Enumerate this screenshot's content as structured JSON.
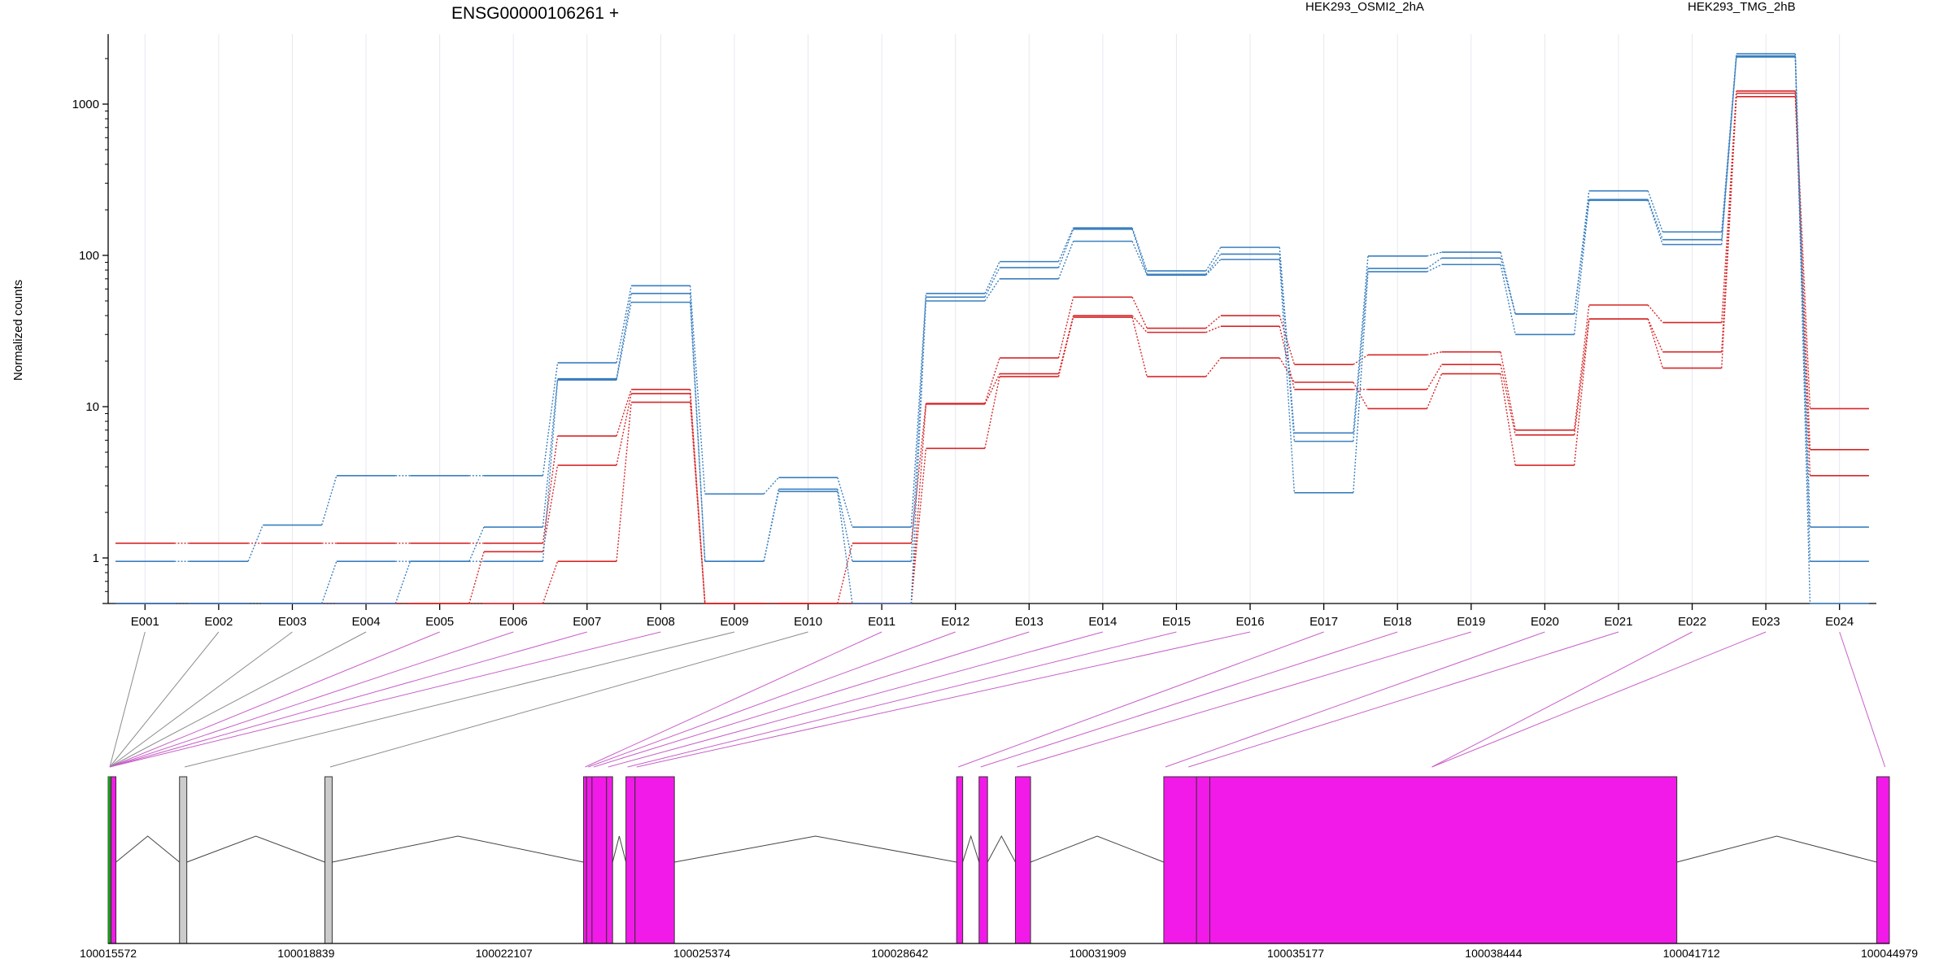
{
  "chart_data": {
    "type": "line",
    "title": "ENSG00000106261 +",
    "ylabel": "Normalized counts",
    "y_scale": "log",
    "ylim": [
      0.5,
      2900
    ],
    "y_ticks": [
      {
        "v": 1,
        "label": "1"
      },
      {
        "v": 10,
        "label": "10"
      },
      {
        "v": 100,
        "label": "100"
      },
      {
        "v": 1000,
        "label": "1000"
      }
    ],
    "grid": "vertical",
    "legend_position": "top",
    "categories": [
      "E001",
      "E002",
      "E003",
      "E004",
      "E005",
      "E006",
      "E007",
      "E008",
      "E009",
      "E010",
      "E011",
      "E012",
      "E013",
      "E014",
      "E015",
      "E016",
      "E017",
      "E018",
      "E019",
      "E020",
      "E021",
      "E022",
      "E023",
      "E024"
    ],
    "legend": [
      {
        "label": "HEK293_OSMI2_2hA",
        "color": "#d62728"
      },
      {
        "label": "HEK293_TMG_2hB",
        "color": "#3a7fbf"
      }
    ],
    "series": [
      {
        "group": 0,
        "color": "#d62728",
        "values": [
          1.25,
          1.25,
          1.25,
          1.25,
          1.25,
          1.25,
          6.4,
          13,
          0.5,
          0.5,
          1.25,
          10.5,
          21,
          53,
          33,
          40,
          19,
          22,
          23,
          7,
          47,
          36,
          1220,
          9.7
        ]
      },
      {
        "group": 0,
        "color": "#d62728",
        "values": [
          0.5,
          0.5,
          0.5,
          0.5,
          0.5,
          1.1,
          4.1,
          12.2,
          0.5,
          0.5,
          0.5,
          10.4,
          16.5,
          40,
          31,
          34,
          13,
          13,
          19,
          6.5,
          38,
          23,
          1180,
          5.2
        ]
      },
      {
        "group": 0,
        "color": "#d62728",
        "values": [
          0.5,
          0.5,
          0.5,
          0.5,
          0.5,
          0.5,
          0.95,
          10.7,
          0.5,
          0.5,
          0.5,
          5.3,
          15.8,
          39,
          15.8,
          21,
          14.5,
          9.7,
          16.5,
          4.1,
          38,
          18,
          1120,
          3.5
        ]
      },
      {
        "group": 1,
        "color": "#3a7fbf",
        "values": [
          0.95,
          0.95,
          1.65,
          3.5,
          3.5,
          3.5,
          19.5,
          63,
          2.65,
          3.4,
          1.6,
          56,
          91,
          152,
          79,
          113,
          6.7,
          99,
          105,
          41,
          267,
          143,
          2150,
          1.6
        ]
      },
      {
        "group": 1,
        "color": "#3a7fbf",
        "values": [
          0.5,
          0.5,
          0.5,
          0.95,
          0.95,
          1.6,
          15.3,
          56,
          0.95,
          2.85,
          0.95,
          53,
          83,
          149,
          75,
          102,
          5.9,
          82,
          96,
          41,
          234,
          127,
          2080,
          0.95
        ]
      },
      {
        "group": 1,
        "color": "#3a7fbf",
        "values": [
          0.5,
          0.5,
          0.5,
          0.5,
          0.95,
          0.95,
          15,
          49,
          0.95,
          2.75,
          0.5,
          50,
          70,
          124,
          74,
          94,
          2.7,
          78,
          87,
          30,
          231,
          118,
          2050,
          0.5
        ]
      }
    ],
    "gene_coords": [
      "100015572",
      "100018839",
      "100022107",
      "100025374",
      "100028642",
      "100031909",
      "100035177",
      "100038444",
      "100041712",
      "100044979"
    ],
    "gene_range": [
      100015572,
      100044979
    ],
    "exons": [
      {
        "start": 100015572,
        "end": 100015620,
        "color": "#f21ae8",
        "featured": true
      },
      {
        "start": 100015620,
        "end": 100015700,
        "color": "#f21ae8",
        "featured": true
      },
      {
        "start": 100016750,
        "end": 100016870,
        "color": "#cccccc",
        "featured": false
      },
      {
        "start": 100019150,
        "end": 100019270,
        "color": "#cccccc",
        "featured": false
      },
      {
        "start": 100023420,
        "end": 100023470,
        "color": "#f21ae8",
        "featured": true
      },
      {
        "start": 100023470,
        "end": 100023560,
        "color": "#f21ae8",
        "featured": true
      },
      {
        "start": 100023560,
        "end": 100023800,
        "color": "#f21ae8",
        "featured": true
      },
      {
        "start": 100023800,
        "end": 100023900,
        "color": "#f21ae8",
        "featured": true
      },
      {
        "start": 100024120,
        "end": 100024270,
        "color": "#f21ae8",
        "featured": true
      },
      {
        "start": 100024270,
        "end": 100024920,
        "color": "#f21ae8",
        "featured": true
      },
      {
        "start": 100029580,
        "end": 100029680,
        "color": "#f21ae8",
        "featured": true
      },
      {
        "start": 100029950,
        "end": 100030090,
        "color": "#f21ae8",
        "featured": true
      },
      {
        "start": 100030550,
        "end": 100030800,
        "color": "#f21ae8",
        "featured": true
      },
      {
        "start": 100033000,
        "end": 100033540,
        "color": "#f21ae8",
        "featured": true
      },
      {
        "start": 100033540,
        "end": 100033760,
        "color": "#f21ae8",
        "featured": true
      },
      {
        "start": 100033760,
        "end": 100041470,
        "color": "#f21ae8",
        "featured": true
      },
      {
        "start": 100044770,
        "end": 100044979,
        "color": "#f21ae8",
        "featured": true
      }
    ],
    "exon_links": [
      {
        "exon": "E001",
        "gene_pos": 100015572,
        "featured": false
      },
      {
        "exon": "E002",
        "gene_pos": 100015572,
        "featured": false
      },
      {
        "exon": "E003",
        "gene_pos": 100015572,
        "featured": false
      },
      {
        "exon": "E004",
        "gene_pos": 100015572,
        "featured": false
      },
      {
        "exon": "E005",
        "gene_pos": 100015572,
        "featured": true
      },
      {
        "exon": "E006",
        "gene_pos": 100015572,
        "featured": true
      },
      {
        "exon": "E007",
        "gene_pos": 100015572,
        "featured": true
      },
      {
        "exon": "E008",
        "gene_pos": 100015572,
        "featured": true
      },
      {
        "exon": "E009",
        "gene_pos": 100016810,
        "featured": false
      },
      {
        "exon": "E010",
        "gene_pos": 100019210,
        "featured": false
      },
      {
        "exon": "E011",
        "gene_pos": 100023420,
        "featured": true
      },
      {
        "exon": "E012",
        "gene_pos": 100023470,
        "featured": true
      },
      {
        "exon": "E013",
        "gene_pos": 100023560,
        "featured": true
      },
      {
        "exon": "E014",
        "gene_pos": 100023800,
        "featured": true
      },
      {
        "exon": "E015",
        "gene_pos": 100024120,
        "featured": true
      },
      {
        "exon": "E016",
        "gene_pos": 100024270,
        "featured": true
      },
      {
        "exon": "E017",
        "gene_pos": 100029580,
        "featured": true
      },
      {
        "exon": "E018",
        "gene_pos": 100029950,
        "featured": true
      },
      {
        "exon": "E019",
        "gene_pos": 100030550,
        "featured": true
      },
      {
        "exon": "E020",
        "gene_pos": 100033000,
        "featured": true
      },
      {
        "exon": "E021",
        "gene_pos": 100033380,
        "featured": true
      },
      {
        "exon": "E022",
        "gene_pos": 100037400,
        "featured": true
      },
      {
        "exon": "E023",
        "gene_pos": 100037400,
        "featured": true
      },
      {
        "exon": "E024",
        "gene_pos": 100044880,
        "featured": true
      }
    ]
  }
}
